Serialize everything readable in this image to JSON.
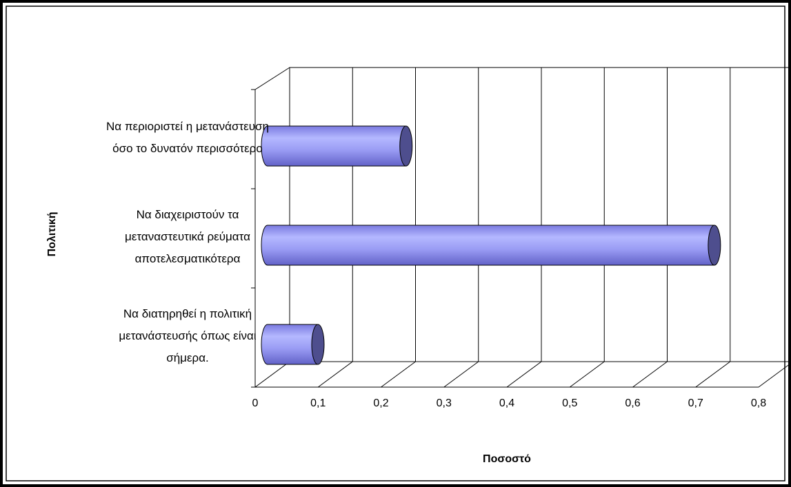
{
  "chart_data": {
    "type": "bar3d-horizontal",
    "x_label": "Ποσοστό",
    "y_label": "Πολιτική",
    "categories": [
      "Να περιοριστεί η μετανάστευση όσο το δυνατόν περισσότερο",
      "Να διαχειριστούν τα μεταναστευτικά ρεύματα αποτελεσματικότερα",
      "Να διατηρηθεί η πολιτική μετανάστευσής όπως είναι σήμερα."
    ],
    "values": [
      0.22,
      0.71,
      0.08
    ],
    "color": "#8c8cf0",
    "xlim": [
      0,
      0.8
    ],
    "xticks": [
      0,
      {
        "value": 0.1,
        "label": "0,1"
      },
      {
        "value": 0.2,
        "label": "0,2"
      },
      {
        "value": 0.3,
        "label": "0,3"
      },
      {
        "value": 0.4,
        "label": "0,4"
      },
      {
        "value": 0.5,
        "label": "0,5"
      },
      {
        "value": 0.6,
        "label": "0,6"
      },
      {
        "value": 0.7,
        "label": "0,7"
      },
      {
        "value": 0.8,
        "label": "0,8"
      }
    ],
    "grid": true
  }
}
